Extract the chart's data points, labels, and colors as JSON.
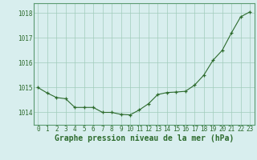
{
  "x": [
    0,
    1,
    2,
    3,
    4,
    5,
    6,
    7,
    8,
    9,
    10,
    11,
    12,
    13,
    14,
    15,
    16,
    17,
    18,
    19,
    20,
    21,
    22,
    23
  ],
  "y": [
    1015.0,
    1014.78,
    1014.6,
    1014.55,
    1014.2,
    1014.2,
    1014.2,
    1014.0,
    1014.0,
    1013.92,
    1013.9,
    1014.1,
    1014.35,
    1014.72,
    1014.8,
    1014.82,
    1014.85,
    1015.1,
    1015.5,
    1016.1,
    1016.5,
    1017.2,
    1017.85,
    1018.05
  ],
  "line_color": "#2d6b2d",
  "marker": "+",
  "bg_color": "#d8eeee",
  "grid_color": "#a0ccbb",
  "xlabel": "Graphe pression niveau de la mer (hPa)",
  "xlabel_color": "#2d6b2d",
  "xlabel_fontsize": 7,
  "tick_color": "#2d6b2d",
  "tick_fontsize": 5.5,
  "ylim": [
    1013.5,
    1018.4
  ],
  "yticks": [
    1014,
    1015,
    1016,
    1017,
    1018
  ],
  "xlim": [
    -0.5,
    23.5
  ],
  "spine_color": "#5a9a70"
}
